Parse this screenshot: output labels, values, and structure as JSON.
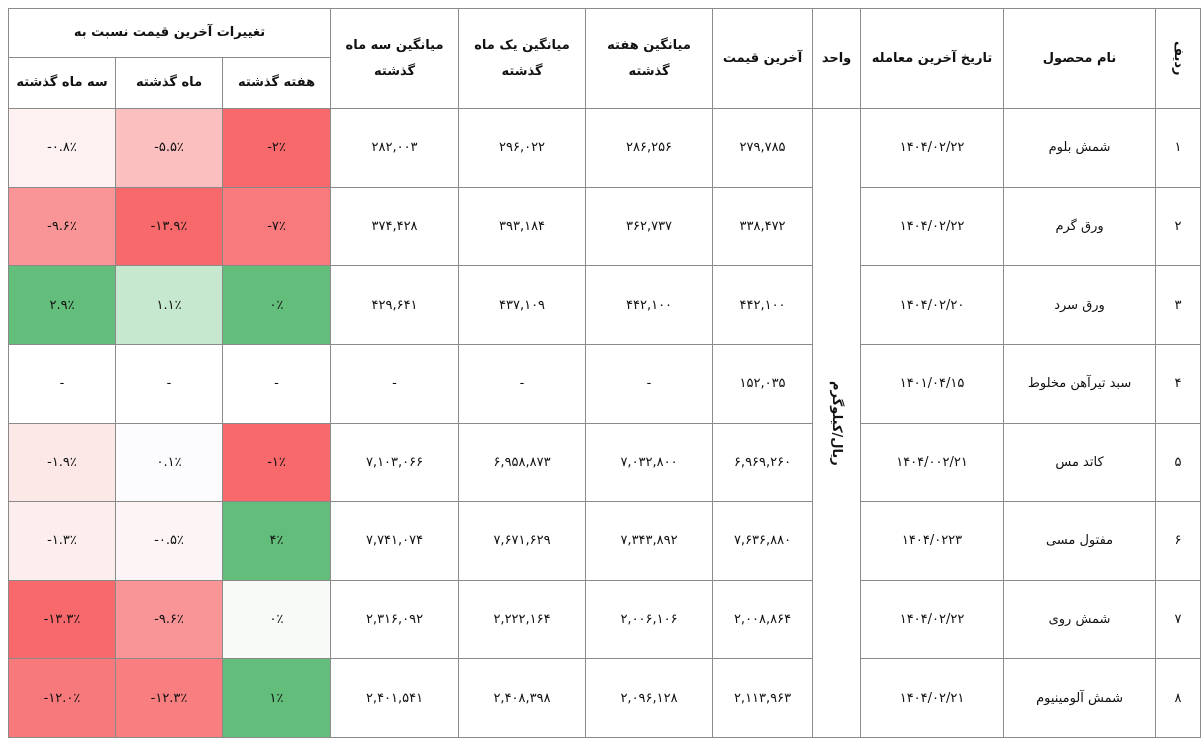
{
  "table": {
    "columns": [
      "ردیف",
      "نام محصول",
      "تاریخ آخرین معامله",
      "واحد",
      "آخرین قیمت",
      "میانگین هفته گذشته",
      "میانگین یک ماه گذشته",
      "میانگین سه ماه گذشته"
    ],
    "change_header": "تغییرات آخرین قیمت نسبت به",
    "change_columns": [
      "هفته گذشته",
      "ماه گذشته",
      "سه ماه گذشته"
    ],
    "unit": "ریال/کیلوگرم",
    "rows": [
      {
        "cells": [
          "۱",
          "شمش بلوم",
          "۱۴۰۴/۰۲/۲۲",
          "۲۷۹,۷۸۵",
          "۲۸۶,۲۵۶",
          "۲۹۶,۰۲۲",
          "۲۸۲,۰۰۳"
        ],
        "changes": [
          "-۲٪",
          "-۵.۵٪",
          "-۰.۸٪"
        ],
        "change_colors": [
          "#f8696b",
          "#fcbfc0",
          "#fdf1f1"
        ]
      },
      {
        "cells": [
          "۲",
          "ورق گرم",
          "۱۴۰۴/۰۲/۲۲",
          "۳۳۸,۴۷۲",
          "۳۶۲,۷۳۷",
          "۳۹۳,۱۸۴",
          "۳۷۴,۴۲۸"
        ],
        "changes": [
          "-۷٪",
          "-۱۳.۹٪",
          "-۹.۶٪"
        ],
        "change_colors": [
          "#f97a7c",
          "#f8696b",
          "#fa9597"
        ]
      },
      {
        "cells": [
          "۳",
          "ورق سرد",
          "۱۴۰۴/۰۲/۲۰",
          "۴۴۲,۱۰۰",
          "۴۴۲,۱۰۰",
          "۴۳۷,۱۰۹",
          "۴۲۹,۶۴۱"
        ],
        "changes": [
          "۰٪",
          "۱.۱٪",
          "۲.۹٪"
        ],
        "change_colors": [
          "#63be7b",
          "#c6e8cf",
          "#63be7b"
        ]
      },
      {
        "cells": [
          "۴",
          "سبد تیرآهن مخلوط",
          "۱۴۰۱/۰۴/۱۵",
          "۱۵۲,۰۳۵",
          "-",
          "-",
          "-"
        ],
        "changes": [
          "-",
          "-",
          "-"
        ],
        "change_colors": [
          "#ffffff",
          "#ffffff",
          "#ffffff"
        ]
      },
      {
        "cells": [
          "۵",
          "کاتد مس",
          "۱۴۰۴/۰۰۲/۲۱",
          "۶,۹۶۹,۲۶۰",
          "۷,۰۳۲,۸۰۰",
          "۶,۹۵۸,۸۷۳",
          "۷,۱۰۳,۰۶۶"
        ],
        "changes": [
          "-۱٪",
          "۰.۱٪",
          "-۱.۹٪"
        ],
        "change_colors": [
          "#f8696b",
          "#fcfcff",
          "#fde8e8"
        ]
      },
      {
        "cells": [
          "۶",
          "مفتول مسی",
          "۱۴۰۴/۰۲۲۳",
          "۷,۶۳۶,۸۸۰",
          "۷,۳۴۳,۸۹۲",
          "۷,۶۷۱,۶۲۹",
          "۷,۷۴۱,۰۷۴"
        ],
        "changes": [
          "۴٪",
          "-۰.۵٪",
          "-۱.۳٪"
        ],
        "change_colors": [
          "#63be7b",
          "#fdf5f5",
          "#fdeeee"
        ]
      },
      {
        "cells": [
          "۷",
          "شمش روی",
          "۱۴۰۴/۰۲/۲۲",
          "۲,۰۰۸,۸۶۴",
          "۲,۰۰۶,۱۰۶",
          "۲,۲۲۲,۱۶۴",
          "۲,۳۱۶,۰۹۲"
        ],
        "changes": [
          "۰٪",
          "-۹.۶٪",
          "-۱۳.۳٪"
        ],
        "change_colors": [
          "#f8faf8",
          "#fa9597",
          "#f8696b"
        ]
      },
      {
        "cells": [
          "۸",
          "شمش آلومینیوم",
          "۱۴۰۴/۰۲/۲۱",
          "۲,۱۱۳,۹۶۳",
          "۲,۰۹۶,۱۲۸",
          "۲,۴۰۸,۳۹۸",
          "۲,۴۰۱,۵۴۱"
        ],
        "changes": [
          "۱٪",
          "-۱۲.۳٪",
          "-۱۲.۰٪"
        ],
        "change_colors": [
          "#63be7b",
          "#f97e80",
          "#f8797b"
        ]
      }
    ]
  }
}
